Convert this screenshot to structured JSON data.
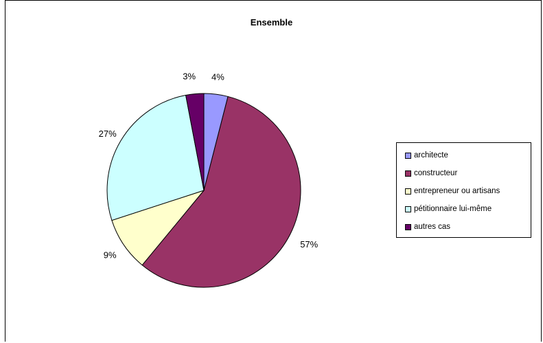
{
  "chart_data": {
    "type": "pie",
    "title": "Ensemble",
    "categories": [
      "architecte",
      "constructeur",
      "entrepreneur ou artisans",
      "pétitionnaire lui-même",
      "autres cas"
    ],
    "values": [
      4,
      57,
      9,
      27,
      3
    ],
    "labels": [
      "4%",
      "57%",
      "9%",
      "27%",
      "3%"
    ],
    "colors": [
      "#9999ff",
      "#993366",
      "#ffffcc",
      "#ccffff",
      "#660066"
    ],
    "legend_position": "right"
  }
}
